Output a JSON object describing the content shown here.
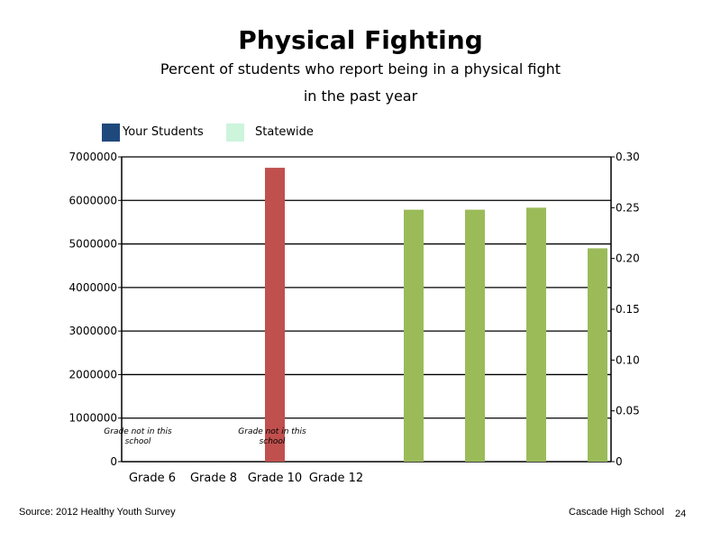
{
  "slide": {
    "title": "Physical Fighting",
    "subtitle_line1": "Percent of students who report being in a physical fight",
    "subtitle_line2": "in the past year",
    "source": "Source: 2012 Healthy Youth Survey",
    "school": "Cascade High School",
    "page_number": "24"
  },
  "legend": [
    {
      "label": "Your Students",
      "color": "#1f497d"
    },
    {
      "label": "Statewide",
      "color": "#ccf5dc"
    }
  ],
  "chart_data": {
    "type": "bar",
    "categories": [
      "Grade 6",
      "Grade 8",
      "Grade 10",
      "Grade 12"
    ],
    "y_left": {
      "ticks": [
        "0",
        "1000000",
        "2000000",
        "3000000",
        "4000000",
        "5000000",
        "6000000",
        "7000000"
      ],
      "ylim": [
        0,
        7000000
      ]
    },
    "y_right": {
      "ticks": [
        "0",
        "0.05",
        "0.10",
        "0.15",
        "0.20",
        "0.25",
        "0.30"
      ],
      "ylim": [
        0,
        0.3
      ]
    },
    "grid": true,
    "legend_position": "top-left",
    "placeholder_bar": {
      "category": "Grade 10",
      "value": 6750000,
      "axis": "left",
      "color": "#c0504d"
    },
    "statewide_series": {
      "axis": "right",
      "color": "#9bbb59",
      "values": [
        0.248,
        0.248,
        0.25,
        0.21
      ]
    },
    "notes": [
      {
        "category": "Grade 6",
        "text": "Grade not in this school"
      },
      {
        "category": "Grade 10",
        "text": "Grade not in this school"
      }
    ]
  }
}
